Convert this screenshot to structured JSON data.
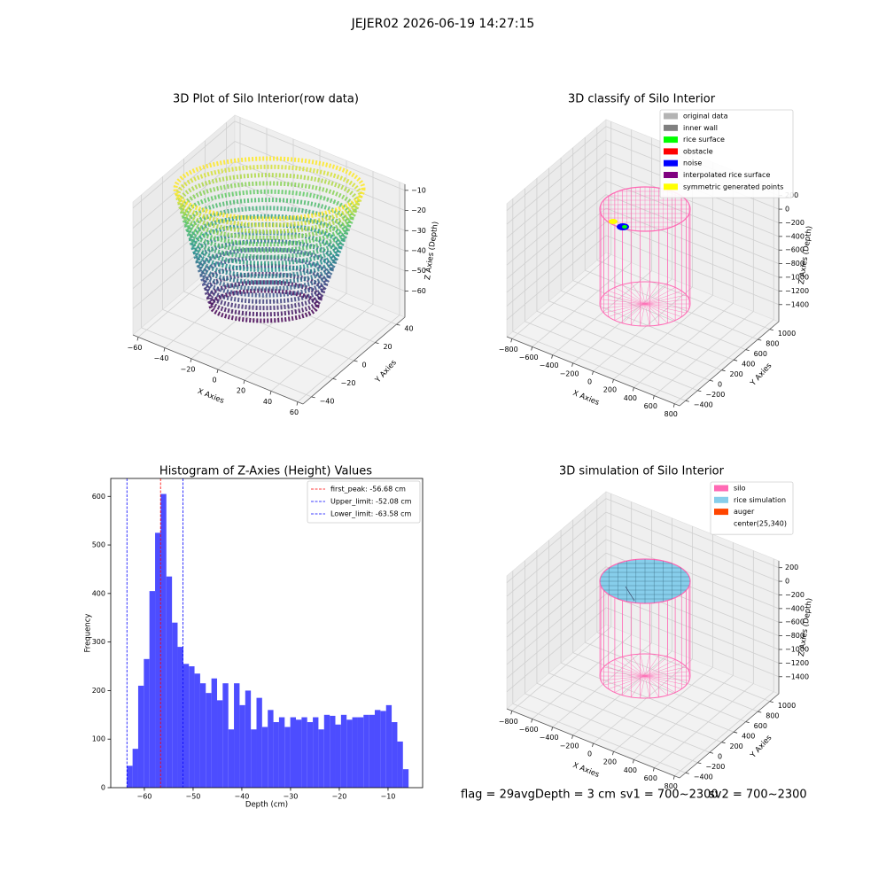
{
  "title": "JEJER02 2026-06-19 14:27:15",
  "status": [
    "flag = 29",
    "avgDepth = 3 cm",
    "sv1 = 700~2300",
    "sv2 = 700~2300"
  ],
  "chart_data": [
    {
      "type": "scatter3d",
      "title": "3D Plot of Silo Interior(row data)",
      "xlabel": "X Axies",
      "ylabel": "Y Axies",
      "zlabel": "Z Axies (Depth)",
      "xlim": [
        -64,
        64
      ],
      "ylim": [
        -48,
        48
      ],
      "zlim": [
        -73,
        -7
      ],
      "xticks": [
        {
          "value": -60,
          "label": "−60"
        },
        {
          "value": -40,
          "label": "−40"
        },
        {
          "value": -20,
          "label": "−20"
        },
        0,
        20,
        40,
        60
      ],
      "yticks": [
        {
          "value": -40,
          "label": "−40"
        },
        {
          "value": -20,
          "label": "−20"
        },
        0,
        20,
        40
      ],
      "zticks": [
        {
          "value": -10,
          "label": "−10"
        },
        {
          "value": -20,
          "label": "−20"
        },
        {
          "value": -30,
          "label": "−30"
        },
        {
          "value": -40,
          "label": "−40"
        },
        {
          "value": -50,
          "label": "−50"
        },
        {
          "value": -60,
          "label": "−60"
        }
      ]
    },
    {
      "type": "classify3d",
      "title": "3D classify of Silo Interior",
      "xlabel": "X Axies",
      "ylabel": "Y Axies",
      "zlabel": "Z Axies (Depth)",
      "xlim": [
        -850,
        850
      ],
      "ylim": [
        -500,
        1150
      ],
      "zlim": [
        -1650,
        300
      ],
      "xticks": [
        {
          "value": -800,
          "label": "−800"
        },
        {
          "value": -600,
          "label": "−600"
        },
        {
          "value": -400,
          "label": "−400"
        },
        {
          "value": -200,
          "label": "−200"
        },
        0,
        200,
        400,
        600,
        800
      ],
      "yticks": [
        {
          "value": -400,
          "label": "−400"
        },
        {
          "value": -200,
          "label": "−200"
        },
        0,
        200,
        400,
        600,
        800,
        1000
      ],
      "zticks": [
        200,
        0,
        {
          "value": -200,
          "label": "−200"
        },
        {
          "value": -400,
          "label": "−400"
        },
        {
          "value": -600,
          "label": "−600"
        },
        {
          "value": -800,
          "label": "−800"
        },
        {
          "value": -1000,
          "label": "−1000"
        },
        {
          "value": -1200,
          "label": "−1200"
        },
        {
          "value": -1400,
          "label": "−1400"
        }
      ],
      "legend": [
        {
          "name": "original data",
          "color": "#b3b3b3"
        },
        {
          "name": "inner wall",
          "color": "#808080"
        },
        {
          "name": "rice surface",
          "color": "#00ff00"
        },
        {
          "name": "obstacle",
          "color": "#ff0000"
        },
        {
          "name": "noise",
          "color": "#0000ff"
        },
        {
          "name": "interpolated rice surface",
          "color": "#800080"
        },
        {
          "name": "symmetric generated points",
          "color": "#ffff00"
        }
      ]
    },
    {
      "type": "histogram",
      "title": "Histogram of Z-Axies (Height) Values",
      "xlabel": "Depth (cm)",
      "ylabel": "Frequency",
      "color": "#4d4dff",
      "xlim": [
        -66.9,
        -2.9
      ],
      "ylim": [
        0,
        637
      ],
      "xticks": [
        {
          "value": -60,
          "label": "−60"
        },
        {
          "value": -50,
          "label": "−50"
        },
        {
          "value": -40,
          "label": "−40"
        },
        {
          "value": -30,
          "label": "−30"
        },
        {
          "value": -20,
          "label": "−20"
        },
        {
          "value": -10,
          "label": "−10"
        }
      ],
      "yticks": [
        0,
        100,
        200,
        300,
        400,
        500,
        600
      ],
      "bins": [
        -63.58,
        -62.42,
        -61.27,
        -60.11,
        -58.96,
        -57.8,
        -56.64,
        -55.49,
        -54.33,
        -53.18,
        -52.02,
        -50.86,
        -49.71,
        -48.55,
        -47.4,
        -46.24,
        -45.08,
        -43.93,
        -42.77,
        -41.62,
        -40.46,
        -39.3,
        -38.15,
        -36.99,
        -35.84,
        -34.68,
        -33.52,
        -32.37,
        -31.21,
        -30.06,
        -28.9,
        -27.74,
        -26.59,
        -25.43,
        -24.28,
        -23.12,
        -21.96,
        -20.81,
        -19.65,
        -18.5,
        -17.34,
        -16.18,
        -15.03,
        -13.87,
        -12.72,
        -11.56,
        -10.4,
        -9.25,
        -8.09,
        -6.94,
        -5.78
      ],
      "values": [
        45,
        80,
        210,
        265,
        405,
        525,
        605,
        435,
        340,
        290,
        255,
        250,
        235,
        215,
        195,
        225,
        180,
        215,
        120,
        215,
        170,
        200,
        120,
        185,
        125,
        160,
        135,
        145,
        125,
        145,
        140,
        145,
        135,
        145,
        120,
        150,
        148,
        130,
        150,
        140,
        145,
        145,
        150,
        150,
        160,
        158,
        170,
        135,
        95,
        38
      ],
      "lines": [
        {
          "label": "first_peak: -56.68 cm",
          "value": -56.68,
          "color": "#ff0000"
        },
        {
          "label": "Upper_limit: -52.08 cm",
          "value": -52.08,
          "color": "#0000ff"
        },
        {
          "label": "Lower_limit: -63.58 cm",
          "value": -63.58,
          "color": "#0000ff"
        }
      ],
      "legend_loc": "upper right"
    },
    {
      "type": "simulation3d",
      "title": "3D simulation of Silo Interior",
      "xlabel": "X Axies",
      "ylabel": "Y Axies",
      "zlabel": "Z Axies (Depth)",
      "xlim": [
        -850,
        850
      ],
      "ylim": [
        -500,
        1150
      ],
      "zlim": [
        -1650,
        300
      ],
      "xticks": [
        {
          "value": -800,
          "label": "−800"
        },
        {
          "value": -600,
          "label": "−600"
        },
        {
          "value": -400,
          "label": "−400"
        },
        {
          "value": -200,
          "label": "−200"
        },
        0,
        200,
        400,
        600,
        800
      ],
      "yticks": [
        {
          "value": -400,
          "label": "−400"
        },
        {
          "value": -200,
          "label": "−200"
        },
        0,
        200,
        400,
        600,
        800,
        1000
      ],
      "zticks": [
        200,
        0,
        {
          "value": -200,
          "label": "−200"
        },
        {
          "value": -400,
          "label": "−400"
        },
        {
          "value": -600,
          "label": "−600"
        },
        {
          "value": -800,
          "label": "−800"
        },
        {
          "value": -1000,
          "label": "−1000"
        },
        {
          "value": -1200,
          "label": "−1200"
        },
        {
          "value": -1400,
          "label": "−1400"
        }
      ],
      "legend": [
        {
          "name": "silo",
          "color": "#ff69b4"
        },
        {
          "name": "rice simulation",
          "color": "#87ceeb"
        },
        {
          "name": "auger",
          "color": "#ff4500"
        },
        {
          "name": "center(25,340)",
          "color": "#ffffff"
        }
      ]
    }
  ]
}
